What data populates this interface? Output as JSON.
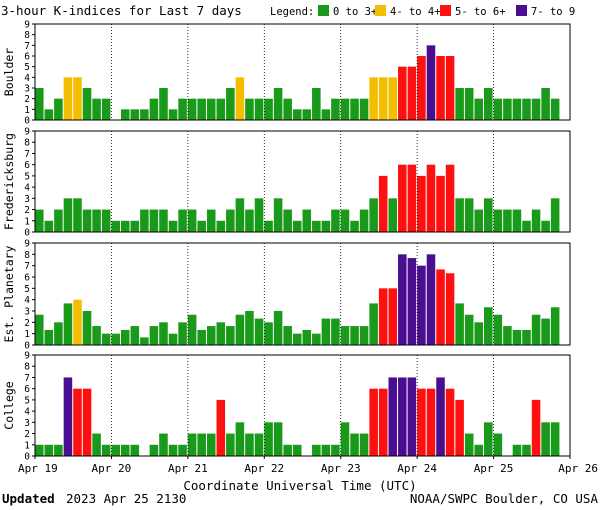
{
  "title": "3-hour K-indices for Last 7 days",
  "legend": {
    "label": "Legend:",
    "entries": [
      {
        "label": "0 to 3+",
        "color": "#1a9a1a"
      },
      {
        "label": "4- to 4+",
        "color": "#f4be00"
      },
      {
        "label": "5- to 6+",
        "color": "#ff1010"
      },
      {
        "label": "7- to 9",
        "color": "#4a0f90"
      }
    ]
  },
  "colors": {
    "green": "#1a9a1a",
    "yellow": "#f4be00",
    "red": "#ff1010",
    "purple": "#4a0f90"
  },
  "footer": {
    "updated_label": "Updated",
    "updated_value": "2023 Apr 25 2130",
    "credit": "NOAA/SWPC Boulder, CO USA"
  },
  "chart_data": {
    "type": "bar",
    "xlabel": "Coordinate Universal Time (UTC)",
    "ylim": [
      0,
      9
    ],
    "yticks": [
      0,
      1,
      2,
      3,
      4,
      5,
      6,
      7,
      8,
      9
    ],
    "xticks": [
      "Apr 19",
      "Apr 20",
      "Apr 21",
      "Apr 22",
      "Apr 23",
      "Apr 24",
      "Apr 25",
      "Apr 26"
    ],
    "interval_hours": 3,
    "panels": [
      {
        "label": "Boulder",
        "values": [
          3,
          1,
          2,
          4,
          4,
          3,
          2,
          2,
          0,
          1,
          1,
          1,
          2,
          3,
          1,
          2,
          2,
          2,
          2,
          2,
          3,
          4,
          2,
          2,
          2,
          3,
          2,
          1,
          1,
          3,
          1,
          2,
          2,
          2,
          2,
          4,
          4,
          4,
          5,
          5,
          6,
          7,
          6,
          6,
          3,
          3,
          2,
          3,
          2,
          2,
          2,
          2,
          2,
          3,
          2,
          0
        ]
      },
      {
        "label": "Fredericksburg",
        "values": [
          2,
          1,
          2,
          3,
          3,
          2,
          2,
          2,
          1,
          1,
          1,
          2,
          2,
          2,
          1,
          2,
          2,
          1,
          2,
          1,
          2,
          3,
          2,
          3,
          1,
          3,
          2,
          1,
          2,
          1,
          1,
          2,
          2,
          1,
          2,
          3,
          5,
          3,
          6,
          6,
          5,
          6,
          5,
          6,
          3,
          3,
          2,
          3,
          2,
          2,
          2,
          1,
          2,
          1,
          3,
          0
        ]
      },
      {
        "label": "Est. Planetary",
        "values": [
          2.67,
          1.33,
          2,
          3.67,
          4,
          3,
          1.67,
          1,
          1,
          1.33,
          1.67,
          0.67,
          1.67,
          2,
          1,
          2,
          2.67,
          1.33,
          1.67,
          2,
          1.67,
          2.67,
          3,
          2.33,
          2,
          3,
          1.67,
          1,
          1.33,
          1,
          2.33,
          2.33,
          1.67,
          1.67,
          1.67,
          3.67,
          5,
          5,
          8,
          7.67,
          7,
          8,
          6.67,
          6.33,
          3.67,
          2.67,
          2,
          3.33,
          2.67,
          1.67,
          1.33,
          1.33,
          2.67,
          2.33,
          3.33,
          0
        ]
      },
      {
        "label": "College",
        "values": [
          1,
          1,
          1,
          7,
          6,
          6,
          2,
          1,
          1,
          1,
          1,
          0,
          1,
          2,
          1,
          1,
          2,
          2,
          2,
          5,
          2,
          3,
          2,
          2,
          3,
          3,
          1,
          1,
          0,
          1,
          1,
          1,
          3,
          2,
          2,
          6,
          6,
          7,
          7,
          7,
          6,
          6,
          7,
          6,
          5,
          2,
          1,
          3,
          2,
          0,
          1,
          1,
          5,
          3,
          3,
          0
        ]
      }
    ]
  }
}
